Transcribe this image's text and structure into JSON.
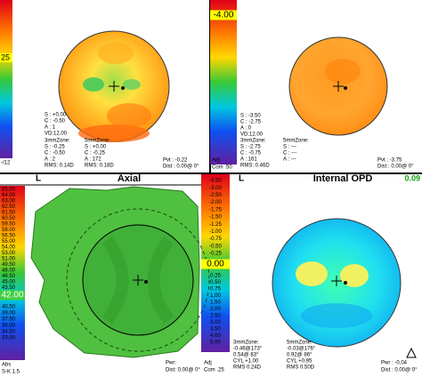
{
  "top_left": {
    "scale_highlight": "25",
    "scale_foot": "-/12",
    "params": [
      "S : +0.00",
      "C : -0.50",
      "A : 1",
      "VD:12.00"
    ],
    "zone3": {
      "label": "3mmZone:",
      "lines": [
        "S : -0.25",
        "C : -0.50",
        "A : 2",
        "RMS: 0.14D"
      ]
    },
    "zone5": {
      "label": "5mmZone:",
      "lines": [
        "S : +0.00",
        "C : -0.25",
        "A : 172",
        "RMS: 0.18D"
      ]
    },
    "pvt": "Pvt : -0.22",
    "dist": "Dist : 0.00@ 0°"
  },
  "top_right": {
    "scale_highlight": "-4.00",
    "scale_foot": [
      "Adj",
      "Com .50"
    ],
    "params": [
      "S : -3.50",
      "C : -2.75",
      "A : 0",
      "VD:12.00"
    ],
    "zone3": {
      "label": "3mmZone:",
      "lines": [
        "S : -2.75",
        "C : -0.75",
        "A : 161",
        "RMS: 0.46D"
      ]
    },
    "zone5": {
      "label": "5mmZone:",
      "lines": [
        "S : ---",
        "C : ---",
        "A : ---"
      ]
    },
    "pvt": "Pvt : -3.75",
    "dist": "Dist : 0.00@ 0°"
  },
  "axial": {
    "eye": "L",
    "title": "Axial",
    "scale_above": [
      "65.00",
      "64.00",
      "63.00",
      "62.50",
      "61.50",
      "60.50",
      "59.50",
      "58.00",
      "56.50",
      "55.00",
      "54.00",
      "53.00",
      "51.00",
      "49.50",
      "48.00",
      "46.50",
      "45.00",
      "43.50"
    ],
    "scale_highlight": "42.00",
    "scale_below": [
      "40.50",
      "39.00",
      "37.50",
      "36.00",
      "34.50",
      "33.00"
    ],
    "scale_foot": [
      "Abs",
      "S-K 1.5"
    ],
    "pwr": "Pwr:",
    "dist": "Dist: 0.00@ 0°"
  },
  "middle_scale": {
    "above": [
      "-3.50",
      "-3.00",
      "-2.50",
      "-2.00",
      "-1.75",
      "-1.50",
      "-1.25",
      "-1.00",
      "-0.75",
      "-0.50",
      "-0.25"
    ],
    "highlight": "0.00",
    "below": [
      "0.25",
      "0.50",
      "0.75",
      "1.00",
      "1.50",
      "2.00",
      "2.50",
      "3.00",
      "3.50",
      "4.00",
      "5.00"
    ],
    "foot": [
      "Adj",
      "Com .25"
    ]
  },
  "internal_opd": {
    "eye": "L",
    "title": "Internal OPD",
    "value": "0.09",
    "zone3": {
      "label": "3mmZone:",
      "lines": [
        "-0.46@173°",
        "0.54@ 83°",
        "CYL +1.00",
        "RMS 0.24D"
      ]
    },
    "zone5": {
      "label": "5mmZone:",
      "lines": [
        "-0.03@176°",
        "0.92@ 86°",
        "CYL +0.95",
        "RMS 0.50D"
      ]
    },
    "pwr": "Pwr : -0.04",
    "dist": "Dist : 0.00@ 0°"
  }
}
